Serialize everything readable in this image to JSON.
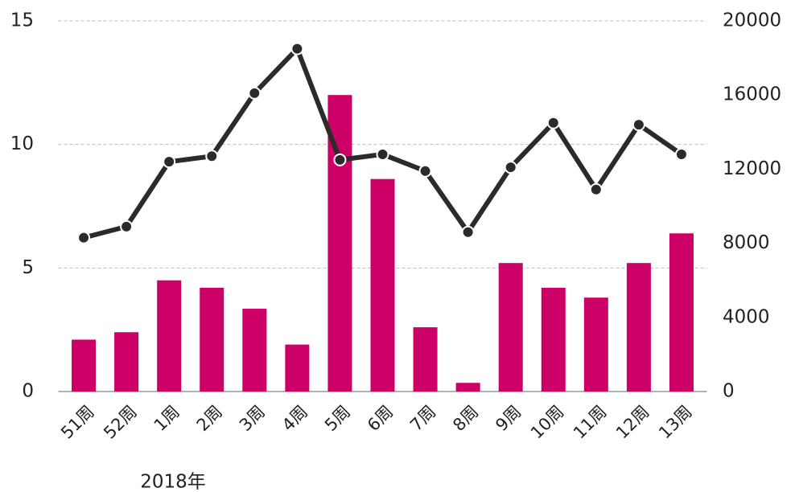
{
  "chart_data": {
    "type": "bar",
    "categories": [
      "51周",
      "52周",
      "1周",
      "2周",
      "3周",
      "4周",
      "5周",
      "6周",
      "7周",
      "8周",
      "9周",
      "10周",
      "11周",
      "12周",
      "13周"
    ],
    "series": [
      {
        "type": "bar",
        "color": "#cc0066",
        "values": [
          2.1,
          2.4,
          4.5,
          4.2,
          3.35,
          1.9,
          12.0,
          8.6,
          2.6,
          0.35,
          5.2,
          4.2,
          3.8,
          5.2,
          6.4
        ]
      },
      {
        "type": "line",
        "axis": "y2",
        "color": "#2b2b2b",
        "values": [
          8300,
          8900,
          12400,
          12700,
          16100,
          18500,
          12500,
          12800,
          11900,
          8600,
          12100,
          14500,
          10900,
          14400,
          12800
        ]
      }
    ],
    "ylim": [
      0,
      15
    ],
    "yticks": [
      0,
      5,
      10,
      15
    ],
    "y2lim": [
      0,
      20000
    ],
    "y2ticks": [
      0,
      4000,
      8000,
      12000,
      16000,
      20000
    ],
    "grid": true,
    "annotations": [
      "2018年"
    ]
  }
}
